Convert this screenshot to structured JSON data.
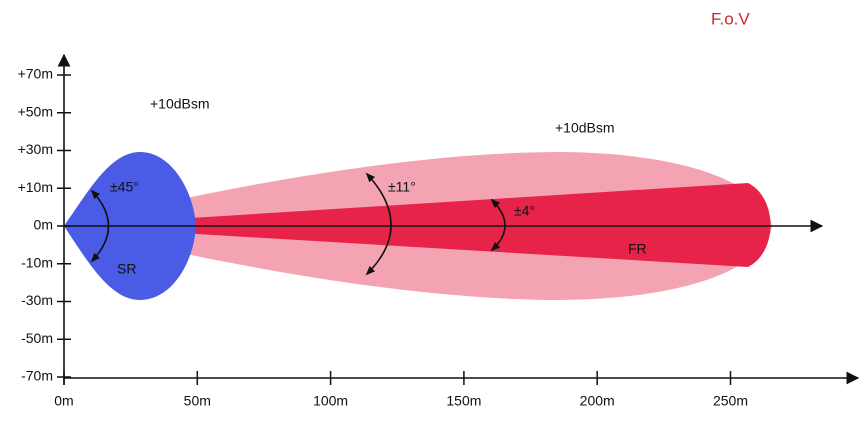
{
  "title": "F.o.V",
  "y_axis": {
    "ticks": [
      "+70m",
      "+50m",
      "+30m",
      "+10m",
      "0m",
      "-10m",
      "-30m",
      "-50m",
      "-70m"
    ]
  },
  "x_axis": {
    "ticks": [
      "0m",
      "50m",
      "100m",
      "150m",
      "200m",
      "250m"
    ]
  },
  "annotations": {
    "sr_rcs": "+10dBsm",
    "fr_rcs": "+10dBsm",
    "sr_angle": "±45°",
    "sr_label": "SR",
    "fr_wide_angle": "±11°",
    "fr_narrow_angle": "±4°",
    "fr_label": "FR"
  }
}
